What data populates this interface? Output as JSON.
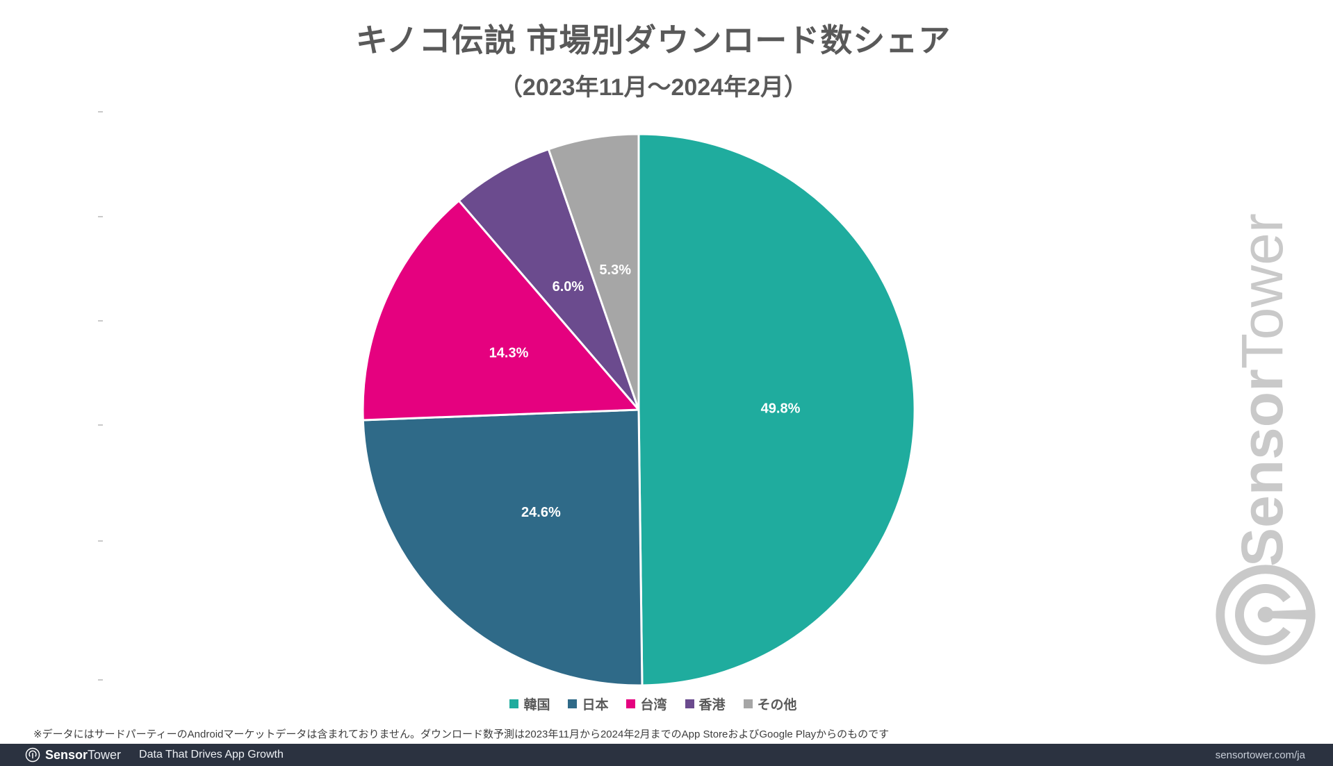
{
  "header": {
    "title": "キノコ伝説 市場別ダウンロード数シェア",
    "subtitle": "（2023年11月～2024年2月）"
  },
  "chart_data": {
    "type": "pie",
    "title": "キノコ伝説 市場別ダウンロード数シェア",
    "subtitle": "（2023年11月～2024年2月）",
    "categories": [
      "韓国",
      "日本",
      "台湾",
      "香港",
      "その他"
    ],
    "values": [
      49.8,
      24.6,
      14.3,
      6.0,
      5.3
    ],
    "data_labels": [
      "49.8%",
      "24.6%",
      "14.3%",
      "6.0%",
      "5.3%"
    ],
    "colors": [
      "#1fac9e",
      "#2f6a88",
      "#e5017f",
      "#6b4b8e",
      "#a6a6a6"
    ],
    "start_angle_deg": 0,
    "direction": "clockwise",
    "slice_border_color": "#ffffff",
    "legend_position": "bottom",
    "label_color": "#ffffff"
  },
  "footnote": "※データにはサードパーティーのAndroidマーケットデータは含まれておりません。ダウンロード数予測は2023年11月から2024年2月までのApp StoreおよびGoogle Playからのものです",
  "footer": {
    "brand_bold": "Sensor",
    "brand_light": "Tower",
    "tagline": "Data That Drives App Growth",
    "url": "sensortower.com/ja"
  },
  "watermark": {
    "brand_bold": "Sensor",
    "brand_light": "Tower"
  },
  "theme": {
    "title_color": "#595959",
    "footer_bg": "#2b3240",
    "watermark_color": "#c9c9c9"
  }
}
